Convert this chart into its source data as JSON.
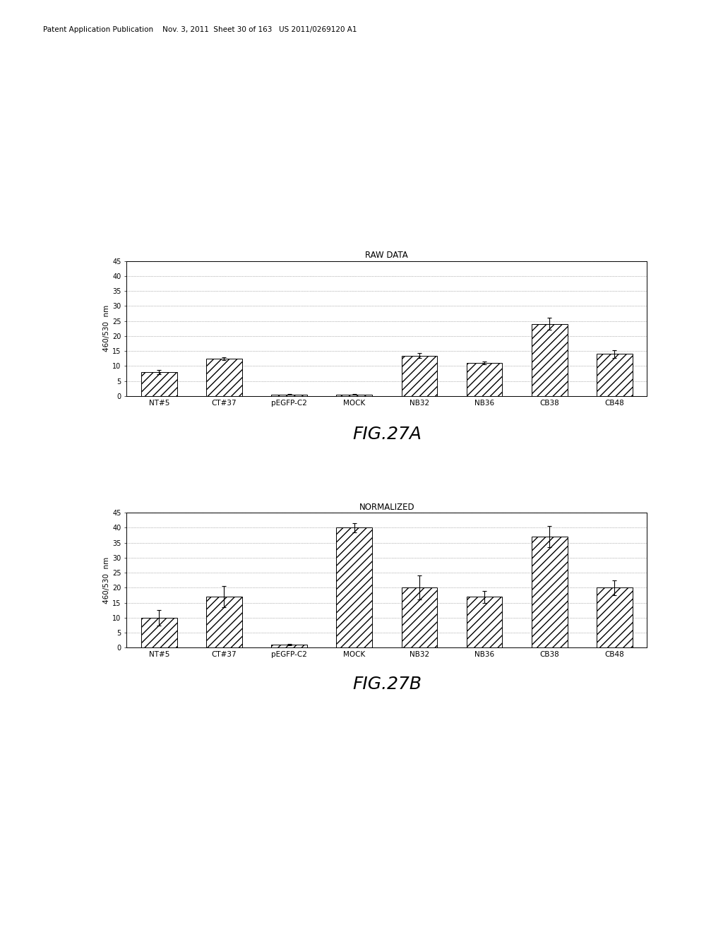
{
  "header_text": "Patent Application Publication    Nov. 3, 2011  Sheet 30 of 163   US 2011/0269120 A1",
  "fig_a": {
    "title": "RAW DATA",
    "categories": [
      "NT#5",
      "CT#37",
      "pEGFP-C2",
      "MOCK",
      "NB32",
      "NB36",
      "CB38",
      "CB48"
    ],
    "values": [
      8.0,
      12.5,
      0.5,
      0.5,
      13.5,
      11.0,
      24.0,
      14.0
    ],
    "errors": [
      0.6,
      0.5,
      0.1,
      0.1,
      0.8,
      0.5,
      2.0,
      1.2
    ],
    "ylabel": "460/530  nm",
    "ylim": [
      0,
      45
    ],
    "yticks": [
      0,
      5,
      10,
      15,
      20,
      25,
      30,
      35,
      40,
      45
    ],
    "fig_label": "FIG.27A"
  },
  "fig_b": {
    "title": "NORMALIZED",
    "categories": [
      "NT#5",
      "CT#37",
      "pEGFP-C2",
      "MOCK",
      "NB32",
      "NB36",
      "CB38",
      "CB48"
    ],
    "values": [
      10.0,
      17.0,
      1.0,
      40.0,
      20.0,
      17.0,
      37.0,
      20.0
    ],
    "errors": [
      2.5,
      3.5,
      0.3,
      1.5,
      4.0,
      2.0,
      3.5,
      2.5
    ],
    "ylabel": "460/530  nm",
    "ylim": [
      0,
      45
    ],
    "yticks": [
      0,
      5,
      10,
      15,
      20,
      25,
      30,
      35,
      40,
      45
    ],
    "fig_label": "FIG.27B"
  },
  "bar_color": "#ffffff",
  "bar_edgecolor": "#000000",
  "hatch": "///",
  "background_color": "#ffffff",
  "page_bg": "#ffffff"
}
